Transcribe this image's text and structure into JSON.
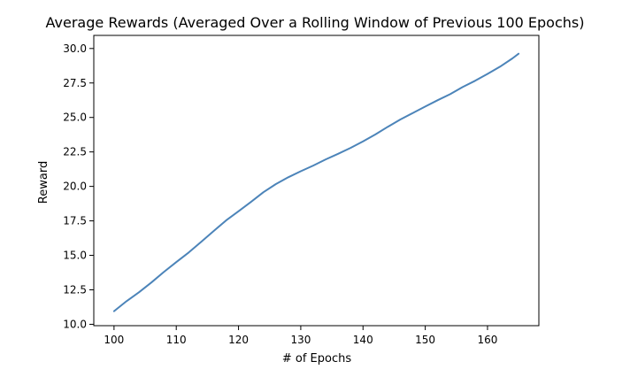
{
  "chart_data": {
    "type": "line",
    "title": "Average Rewards (Averaged Over a Rolling Window of Previous 100 Epochs)",
    "xlabel": "# of Epochs",
    "ylabel": "Reward",
    "xlim": [
      96.75,
      168.25
    ],
    "ylim": [
      9.9,
      30.95
    ],
    "xticks": [
      100,
      110,
      120,
      130,
      140,
      150,
      160
    ],
    "xtick_labels": [
      "100",
      "110",
      "120",
      "130",
      "140",
      "150",
      "160"
    ],
    "yticks": [
      10.0,
      12.5,
      15.0,
      17.5,
      20.0,
      22.5,
      25.0,
      27.5,
      30.0
    ],
    "ytick_labels": [
      "10.0",
      "12.5",
      "15.0",
      "17.5",
      "20.0",
      "22.5",
      "25.0",
      "27.5",
      "30.0"
    ],
    "grid": false,
    "series": [
      {
        "color": "#4c84b9",
        "x": [
          100,
          102,
          104,
          106,
          108,
          110,
          112,
          114,
          116,
          118,
          120,
          122,
          124,
          126,
          128,
          130,
          132,
          134,
          136,
          138,
          140,
          142,
          144,
          146,
          148,
          150,
          152,
          154,
          156,
          158,
          160,
          162,
          164,
          165
        ],
        "y": [
          10.95,
          11.67,
          12.32,
          13.03,
          13.79,
          14.51,
          15.21,
          15.98,
          16.76,
          17.53,
          18.2,
          18.87,
          19.58,
          20.17,
          20.66,
          21.1,
          21.51,
          21.96,
          22.36,
          22.79,
          23.27,
          23.77,
          24.33,
          24.85,
          25.32,
          25.79,
          26.25,
          26.69,
          27.2,
          27.66,
          28.16,
          28.68,
          29.28,
          29.62
        ]
      }
    ]
  }
}
